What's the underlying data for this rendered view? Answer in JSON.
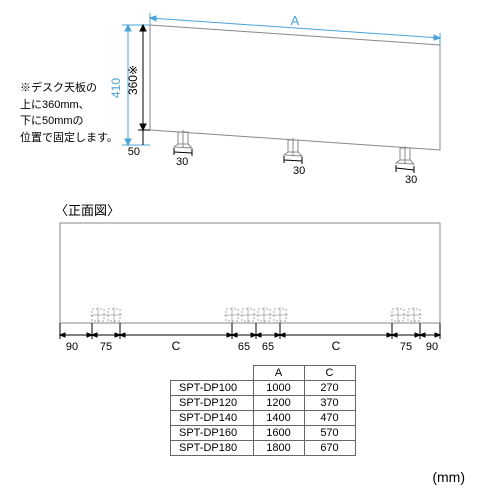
{
  "unit": "(mm)",
  "perspective": {
    "width_label": "A",
    "height_total": "410",
    "height_above": "360※",
    "offset_below": "50",
    "clamp_offset": "30",
    "line_color": "#4aa3d9",
    "panel_stroke": "#888"
  },
  "note": "※デスク天板の\n上に360mm、\n下に50mmの\n位置で固定します。",
  "front_view": {
    "title": "〈正面図〉",
    "edge_outer": "90",
    "edge_inner": "75",
    "center_gap": "65",
    "variable": "C"
  },
  "table": {
    "headers": [
      "",
      "A",
      "C"
    ],
    "rows": [
      [
        "SPT-DP100",
        "1000",
        "270"
      ],
      [
        "SPT-DP120",
        "1200",
        "370"
      ],
      [
        "SPT-DP140",
        "1400",
        "470"
      ],
      [
        "SPT-DP160",
        "1600",
        "570"
      ],
      [
        "SPT-DP180",
        "1800",
        "670"
      ]
    ]
  }
}
